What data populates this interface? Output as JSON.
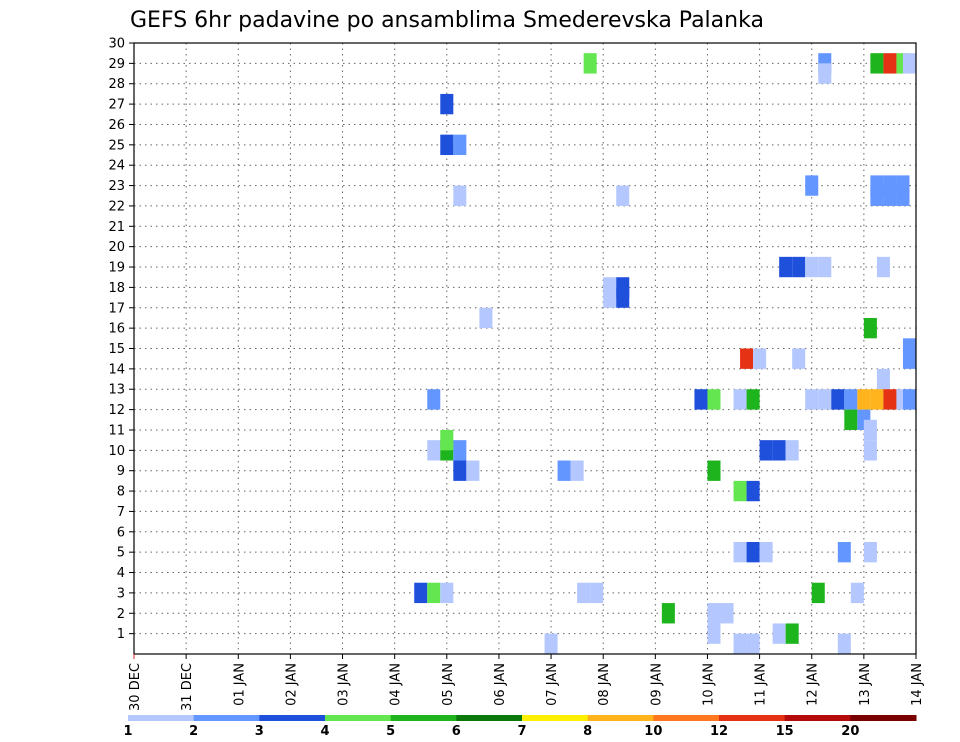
{
  "chart_data": {
    "type": "heatmap",
    "title": "GEFS 6hr padavine po ansamblima Smederevska Palanka",
    "xlabel": "",
    "ylabel": "",
    "x_ticks": [
      "30 DEC",
      "31 DEC",
      "01 JAN",
      "02 JAN",
      "03 JAN",
      "04 JAN",
      "05 JAN",
      "06 JAN",
      "07 JAN",
      "08 JAN",
      "09 JAN",
      "10 JAN",
      "11 JAN",
      "12 JAN",
      "13 JAN",
      "14 JAN"
    ],
    "x_unit": "6-hour step from 30 DEC 00Z",
    "xlim": [
      0,
      60
    ],
    "y_ticks": [
      "1",
      "2",
      "3",
      "4",
      "5",
      "6",
      "7",
      "8",
      "9",
      "10",
      "11",
      "12",
      "13",
      "14",
      "15",
      "16",
      "17",
      "18",
      "19",
      "20",
      "21",
      "22",
      "23",
      "24",
      "25",
      "26",
      "27",
      "28",
      "29",
      "30"
    ],
    "ylim": [
      0,
      30
    ],
    "grid": true,
    "color_scale": {
      "labels": [
        "1",
        "2",
        "3",
        "4",
        "5",
        "6",
        "7",
        "8",
        "10",
        "12",
        "15",
        "20"
      ],
      "colors": [
        "#b4c8ff",
        "#6496ff",
        "#1e50dc",
        "#64e650",
        "#1eb41e",
        "#0a780a",
        "#fff000",
        "#ffb41e",
        "#ff781e",
        "#e63214",
        "#b40a0a",
        "#780000"
      ]
    },
    "cells": [
      {
        "t": 52.5,
        "m": 29,
        "c": 2
      },
      {
        "t": 56.5,
        "m": 29,
        "c": 5
      },
      {
        "t": 57.5,
        "m": 29,
        "c": 10
      },
      {
        "t": 58.5,
        "m": 29,
        "c": 4
      },
      {
        "t": 59.5,
        "m": 29,
        "c": 1
      },
      {
        "t": 34.5,
        "m": 29,
        "c": 4
      },
      {
        "t": 52.5,
        "m": 28.5,
        "c": 1
      },
      {
        "t": 23.5,
        "m": 27,
        "c": 3
      },
      {
        "t": 23.5,
        "m": 25,
        "c": 3
      },
      {
        "t": 24.5,
        "m": 25,
        "c": 2
      },
      {
        "t": 24.5,
        "m": 22.5,
        "c": 1
      },
      {
        "t": 37,
        "m": 22.5,
        "c": 1
      },
      {
        "t": 51.5,
        "m": 23,
        "c": 2
      },
      {
        "t": 56.5,
        "m": 23,
        "c": 2
      },
      {
        "t": 57.5,
        "m": 23,
        "c": 2
      },
      {
        "t": 58.5,
        "m": 23,
        "c": 2
      },
      {
        "t": 56.5,
        "m": 22.5,
        "c": 2
      },
      {
        "t": 57.5,
        "m": 22.5,
        "c": 2
      },
      {
        "t": 58.5,
        "m": 22.5,
        "c": 2
      },
      {
        "t": 49.5,
        "m": 19,
        "c": 3
      },
      {
        "t": 50.5,
        "m": 19,
        "c": 3
      },
      {
        "t": 51.5,
        "m": 19,
        "c": 1
      },
      {
        "t": 52.5,
        "m": 19,
        "c": 1
      },
      {
        "t": 57,
        "m": 19,
        "c": 1
      },
      {
        "t": 36,
        "m": 18,
        "c": 1
      },
      {
        "t": 37,
        "m": 18,
        "c": 3
      },
      {
        "t": 36,
        "m": 17.5,
        "c": 1
      },
      {
        "t": 37,
        "m": 17.5,
        "c": 3
      },
      {
        "t": 26.5,
        "m": 16.5,
        "c": 1
      },
      {
        "t": 56,
        "m": 16,
        "c": 5
      },
      {
        "t": 46.5,
        "m": 14.5,
        "c": 10
      },
      {
        "t": 47.5,
        "m": 14.5,
        "c": 1
      },
      {
        "t": 50.5,
        "m": 14.5,
        "c": 1
      },
      {
        "t": 59.5,
        "m": 14.5,
        "c": 2
      },
      {
        "t": 59.5,
        "m": 15,
        "c": 2
      },
      {
        "t": 57,
        "m": 13.5,
        "c": 1
      },
      {
        "t": 22.5,
        "m": 12.5,
        "c": 2
      },
      {
        "t": 43,
        "m": 12.5,
        "c": 3
      },
      {
        "t": 44,
        "m": 12.5,
        "c": 4
      },
      {
        "t": 46,
        "m": 12.5,
        "c": 1
      },
      {
        "t": 47,
        "m": 12.5,
        "c": 5
      },
      {
        "t": 51.5,
        "m": 12.5,
        "c": 1
      },
      {
        "t": 52.5,
        "m": 12.5,
        "c": 1
      },
      {
        "t": 53.5,
        "m": 12.5,
        "c": 3
      },
      {
        "t": 54.5,
        "m": 12.5,
        "c": 2
      },
      {
        "t": 55.5,
        "m": 12.5,
        "c": 8
      },
      {
        "t": 56.5,
        "m": 12.5,
        "c": 8
      },
      {
        "t": 57.5,
        "m": 12.5,
        "c": 10
      },
      {
        "t": 58.5,
        "m": 12.5,
        "c": 1
      },
      {
        "t": 60,
        "m": 12.5,
        "c": 2
      },
      {
        "t": 54.5,
        "m": 11.5,
        "c": 5
      },
      {
        "t": 55.5,
        "m": 11.5,
        "c": 2
      },
      {
        "t": 56,
        "m": 11,
        "c": 1
      },
      {
        "t": 22.5,
        "m": 10,
        "c": 1
      },
      {
        "t": 23.5,
        "m": 10,
        "c": 5
      },
      {
        "t": 24.5,
        "m": 10,
        "c": 2
      },
      {
        "t": 23.5,
        "m": 10.5,
        "c": 4
      },
      {
        "t": 48,
        "m": 10,
        "c": 3
      },
      {
        "t": 49,
        "m": 10,
        "c": 3
      },
      {
        "t": 50,
        "m": 10,
        "c": 1
      },
      {
        "t": 56,
        "m": 10,
        "c": 1
      },
      {
        "t": 24.5,
        "m": 9,
        "c": 3
      },
      {
        "t": 25.5,
        "m": 9,
        "c": 1
      },
      {
        "t": 32.5,
        "m": 9,
        "c": 2
      },
      {
        "t": 33.5,
        "m": 9,
        "c": 1
      },
      {
        "t": 44,
        "m": 9,
        "c": 5
      },
      {
        "t": 46,
        "m": 8,
        "c": 4
      },
      {
        "t": 47,
        "m": 8,
        "c": 3
      },
      {
        "t": 46,
        "m": 5,
        "c": 1
      },
      {
        "t": 47,
        "m": 5,
        "c": 3
      },
      {
        "t": 48,
        "m": 5,
        "c": 1
      },
      {
        "t": 54,
        "m": 5,
        "c": 2
      },
      {
        "t": 56,
        "m": 5,
        "c": 1
      },
      {
        "t": 21.5,
        "m": 3,
        "c": 3
      },
      {
        "t": 22.5,
        "m": 3,
        "c": 4
      },
      {
        "t": 23.5,
        "m": 3,
        "c": 1
      },
      {
        "t": 34,
        "m": 3,
        "c": 1
      },
      {
        "t": 35,
        "m": 3,
        "c": 1
      },
      {
        "t": 52,
        "m": 3,
        "c": 5
      },
      {
        "t": 55,
        "m": 3,
        "c": 1
      },
      {
        "t": 40.5,
        "m": 2,
        "c": 5
      },
      {
        "t": 44,
        "m": 2,
        "c": 1
      },
      {
        "t": 45,
        "m": 2,
        "c": 1
      },
      {
        "t": 44,
        "m": 1,
        "c": 1
      },
      {
        "t": 49,
        "m": 1,
        "c": 1
      },
      {
        "t": 50,
        "m": 1,
        "c": 5
      },
      {
        "t": 31.5,
        "m": 0,
        "c": 1
      },
      {
        "t": 46,
        "m": 0,
        "c": 1
      },
      {
        "t": 47,
        "m": 0,
        "c": 1
      },
      {
        "t": 54,
        "m": 0,
        "c": 1
      }
    ]
  }
}
